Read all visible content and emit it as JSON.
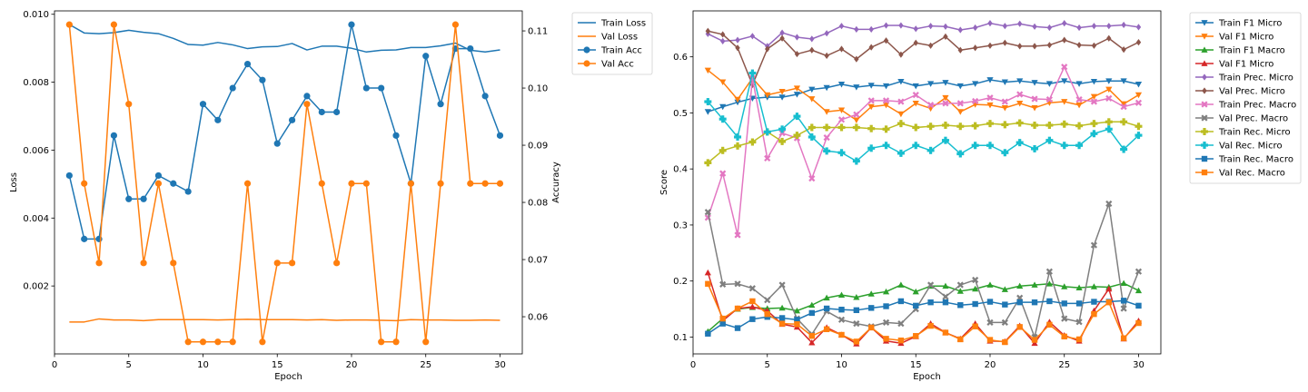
{
  "chart_data": [
    {
      "type": "line",
      "xlabel": "Epoch",
      "ylabel_left": "Loss",
      "ylabel_right": "Accuracy",
      "x": [
        1,
        2,
        3,
        4,
        5,
        6,
        7,
        8,
        9,
        10,
        11,
        12,
        13,
        14,
        15,
        16,
        17,
        18,
        19,
        20,
        21,
        22,
        23,
        24,
        25,
        26,
        27,
        28,
        29,
        30
      ],
      "xlim": [
        0,
        31.5
      ],
      "xticks": [
        0,
        5,
        10,
        15,
        20,
        25,
        30
      ],
      "ylim_left": [
        0,
        0.0101
      ],
      "yticks_left": [
        0.002,
        0.004,
        0.006,
        0.008,
        0.01
      ],
      "ytick_labels_left": [
        "0.002",
        "0.004",
        "0.006",
        "0.008",
        "0.010"
      ],
      "ylim_right": [
        0.0535,
        0.1135
      ],
      "yticks_right": [
        0.06,
        0.07,
        0.08,
        0.09,
        0.1,
        0.11
      ],
      "ytick_labels_right": [
        "0.06",
        "0.07",
        "0.08",
        "0.09",
        "0.10",
        "0.11"
      ],
      "legend_position": "outside-right",
      "grid": false,
      "series": [
        {
          "name": "Train Loss",
          "axis": "left",
          "color": "#1f77b4",
          "marker": "none",
          "values": [
            0.0097,
            0.00945,
            0.00943,
            0.00946,
            0.00953,
            0.00947,
            0.00943,
            0.00929,
            0.00911,
            0.00909,
            0.00917,
            0.0091,
            0.00899,
            0.00904,
            0.00905,
            0.00914,
            0.00895,
            0.00906,
            0.00906,
            0.009,
            0.00889,
            0.00894,
            0.00895,
            0.00902,
            0.00902,
            0.00907,
            0.00915,
            0.00894,
            0.00889,
            0.00895
          ]
        },
        {
          "name": "Val Loss",
          "axis": "left",
          "color": "#ff7f0e",
          "marker": "none",
          "values": [
            0.00094,
            0.00094,
            0.00103,
            0.001,
            0.001,
            0.00098,
            0.00101,
            0.00101,
            0.00101,
            0.00101,
            0.001,
            0.00101,
            0.00102,
            0.00101,
            0.00101,
            0.00101,
            0.001,
            0.00101,
            0.00099,
            0.001,
            0.001,
            0.00099,
            0.00098,
            0.00101,
            0.001,
            0.001,
            0.00099,
            0.00099,
            0.001,
            0.00099
          ]
        },
        {
          "name": "Train Acc",
          "axis": "right",
          "color": "#1f77b4",
          "marker": "circle",
          "values": [
            0.0847,
            0.0736,
            0.0736,
            0.0917,
            0.0806,
            0.0806,
            0.0847,
            0.0833,
            0.0819,
            0.0972,
            0.0944,
            0.1,
            0.1042,
            0.1014,
            0.0903,
            0.0944,
            0.0986,
            0.0958,
            0.0958,
            0.1111,
            0.1,
            0.1,
            0.0917,
            0.0833,
            0.1056,
            0.0972,
            0.1069,
            0.1069,
            0.0986,
            0.0917
          ]
        },
        {
          "name": "Val Acc",
          "axis": "right",
          "color": "#ff7f0e",
          "marker": "circle",
          "values": [
            0.1111,
            0.0833,
            0.0694,
            0.1111,
            0.0972,
            0.0694,
            0.0833,
            0.0694,
            0.0556,
            0.0556,
            0.0556,
            0.0556,
            0.0833,
            0.0556,
            0.0694,
            0.0694,
            0.0972,
            0.0833,
            0.0694,
            0.0833,
            0.0833,
            0.0556,
            0.0556,
            0.0833,
            0.0556,
            0.0833,
            0.1111,
            0.0833,
            0.0833,
            0.0833
          ]
        }
      ]
    },
    {
      "type": "line",
      "xlabel": "Epoch",
      "ylabel": "Score",
      "x": [
        1,
        2,
        3,
        4,
        5,
        6,
        7,
        8,
        9,
        10,
        11,
        12,
        13,
        14,
        15,
        16,
        17,
        18,
        19,
        20,
        21,
        22,
        23,
        24,
        25,
        26,
        27,
        28,
        29,
        30
      ],
      "xlim": [
        0,
        31.5
      ],
      "xticks": [
        0,
        5,
        10,
        15,
        20,
        25,
        30
      ],
      "ylim": [
        0.07,
        0.682
      ],
      "yticks": [
        0.1,
        0.2,
        0.3,
        0.4,
        0.5,
        0.6
      ],
      "ytick_labels": [
        "0.1",
        "0.2",
        "0.3",
        "0.4",
        "0.5",
        "0.6"
      ],
      "legend_position": "outside-right",
      "grid": false,
      "series": [
        {
          "name": "Train F1 Micro",
          "color": "#1f77b4",
          "marker": "triangle-down",
          "values": [
            0.502,
            0.511,
            0.519,
            0.526,
            0.528,
            0.528,
            0.533,
            0.542,
            0.545,
            0.551,
            0.546,
            0.549,
            0.548,
            0.556,
            0.548,
            0.552,
            0.554,
            0.548,
            0.552,
            0.559,
            0.555,
            0.557,
            0.554,
            0.552,
            0.557,
            0.552,
            0.556,
            0.557,
            0.557,
            0.551
          ]
        },
        {
          "name": "Val F1 Micro",
          "color": "#ff7f0e",
          "marker": "triangle-down",
          "values": [
            0.576,
            0.555,
            0.524,
            0.562,
            0.532,
            0.538,
            0.544,
            0.525,
            0.502,
            0.505,
            0.487,
            0.511,
            0.514,
            0.498,
            0.517,
            0.508,
            0.527,
            0.502,
            0.515,
            0.514,
            0.509,
            0.517,
            0.509,
            0.518,
            0.52,
            0.514,
            0.529,
            0.542,
            0.516,
            0.532
          ]
        },
        {
          "name": "Train F1 Macro",
          "color": "#2ca02c",
          "marker": "triangle-up",
          "values": [
            0.11,
            0.133,
            0.15,
            0.153,
            0.151,
            0.152,
            0.147,
            0.157,
            0.17,
            0.175,
            0.171,
            0.177,
            0.181,
            0.193,
            0.181,
            0.191,
            0.191,
            0.182,
            0.186,
            0.193,
            0.185,
            0.191,
            0.193,
            0.195,
            0.19,
            0.188,
            0.19,
            0.189,
            0.196,
            0.183
          ]
        },
        {
          "name": "Val F1 Micro",
          "color": "#d62728",
          "marker": "triangle-up",
          "values": [
            0.215,
            0.129,
            0.151,
            0.154,
            0.147,
            0.123,
            0.118,
            0.09,
            0.117,
            0.104,
            0.088,
            0.117,
            0.093,
            0.089,
            0.101,
            0.124,
            0.108,
            0.097,
            0.124,
            0.093,
            0.092,
            0.12,
            0.089,
            0.127,
            0.103,
            0.093,
            0.147,
            0.186,
            0.097,
            0.129
          ]
        },
        {
          "name": "Train Prec. Micro",
          "color": "#9467bd",
          "marker": "diamond",
          "values": [
            0.641,
            0.628,
            0.63,
            0.637,
            0.619,
            0.643,
            0.635,
            0.632,
            0.642,
            0.655,
            0.649,
            0.649,
            0.656,
            0.656,
            0.65,
            0.655,
            0.654,
            0.648,
            0.652,
            0.66,
            0.655,
            0.659,
            0.654,
            0.652,
            0.66,
            0.652,
            0.655,
            0.655,
            0.657,
            0.653
          ]
        },
        {
          "name": "Val Prec. Micro",
          "color": "#8c564b",
          "marker": "diamond",
          "values": [
            0.646,
            0.64,
            0.616,
            0.55,
            0.614,
            0.633,
            0.605,
            0.612,
            0.602,
            0.614,
            0.596,
            0.617,
            0.629,
            0.604,
            0.625,
            0.62,
            0.636,
            0.612,
            0.616,
            0.62,
            0.625,
            0.619,
            0.619,
            0.621,
            0.63,
            0.621,
            0.62,
            0.633,
            0.613,
            0.626
          ]
        },
        {
          "name": "Train Prec. Macro",
          "color": "#e377c2",
          "marker": "x",
          "values": [
            0.313,
            0.392,
            0.282,
            0.562,
            0.419,
            0.464,
            0.455,
            0.383,
            0.456,
            0.488,
            0.497,
            0.522,
            0.522,
            0.52,
            0.532,
            0.514,
            0.517,
            0.517,
            0.521,
            0.527,
            0.52,
            0.533,
            0.525,
            0.524,
            0.582,
            0.524,
            0.52,
            0.526,
            0.511,
            0.518
          ]
        },
        {
          "name": "Val Prec. Macro",
          "color": "#7f7f7f",
          "marker": "x",
          "values": [
            0.323,
            0.194,
            0.195,
            0.187,
            0.166,
            0.193,
            0.133,
            0.105,
            0.146,
            0.131,
            0.124,
            0.119,
            0.126,
            0.124,
            0.15,
            0.193,
            0.172,
            0.193,
            0.202,
            0.126,
            0.126,
            0.17,
            0.1,
            0.217,
            0.133,
            0.127,
            0.264,
            0.338,
            0.151,
            0.217
          ]
        },
        {
          "name": "Train Rec. Micro",
          "color": "#bcbd22",
          "marker": "plus",
          "values": [
            0.411,
            0.433,
            0.441,
            0.448,
            0.466,
            0.449,
            0.46,
            0.474,
            0.474,
            0.474,
            0.474,
            0.472,
            0.471,
            0.481,
            0.474,
            0.476,
            0.478,
            0.476,
            0.477,
            0.481,
            0.479,
            0.482,
            0.478,
            0.478,
            0.48,
            0.477,
            0.481,
            0.484,
            0.484,
            0.476
          ]
        },
        {
          "name": "Val Rec. Micro",
          "color": "#17becf",
          "marker": "plus",
          "values": [
            0.52,
            0.489,
            0.457,
            0.571,
            0.466,
            0.471,
            0.494,
            0.457,
            0.432,
            0.429,
            0.414,
            0.437,
            0.442,
            0.428,
            0.442,
            0.433,
            0.451,
            0.427,
            0.442,
            0.442,
            0.429,
            0.447,
            0.436,
            0.451,
            0.442,
            0.442,
            0.463,
            0.471,
            0.435,
            0.46
          ]
        },
        {
          "name": "Train Rec. Macro",
          "color": "#1f77b4",
          "marker": "square",
          "values": [
            0.106,
            0.124,
            0.116,
            0.132,
            0.136,
            0.134,
            0.131,
            0.143,
            0.151,
            0.149,
            0.148,
            0.152,
            0.155,
            0.164,
            0.156,
            0.162,
            0.162,
            0.157,
            0.159,
            0.163,
            0.158,
            0.162,
            0.162,
            0.164,
            0.16,
            0.16,
            0.163,
            0.163,
            0.165,
            0.156
          ]
        },
        {
          "name": "Val Rec. Macro",
          "color": "#ff7f0e",
          "marker": "square",
          "values": [
            0.195,
            0.133,
            0.151,
            0.164,
            0.141,
            0.124,
            0.123,
            0.102,
            0.114,
            0.104,
            0.092,
            0.117,
            0.097,
            0.094,
            0.102,
            0.12,
            0.108,
            0.096,
            0.119,
            0.095,
            0.091,
            0.118,
            0.095,
            0.122,
            0.101,
            0.096,
            0.141,
            0.162,
            0.098,
            0.125
          ]
        }
      ]
    }
  ]
}
